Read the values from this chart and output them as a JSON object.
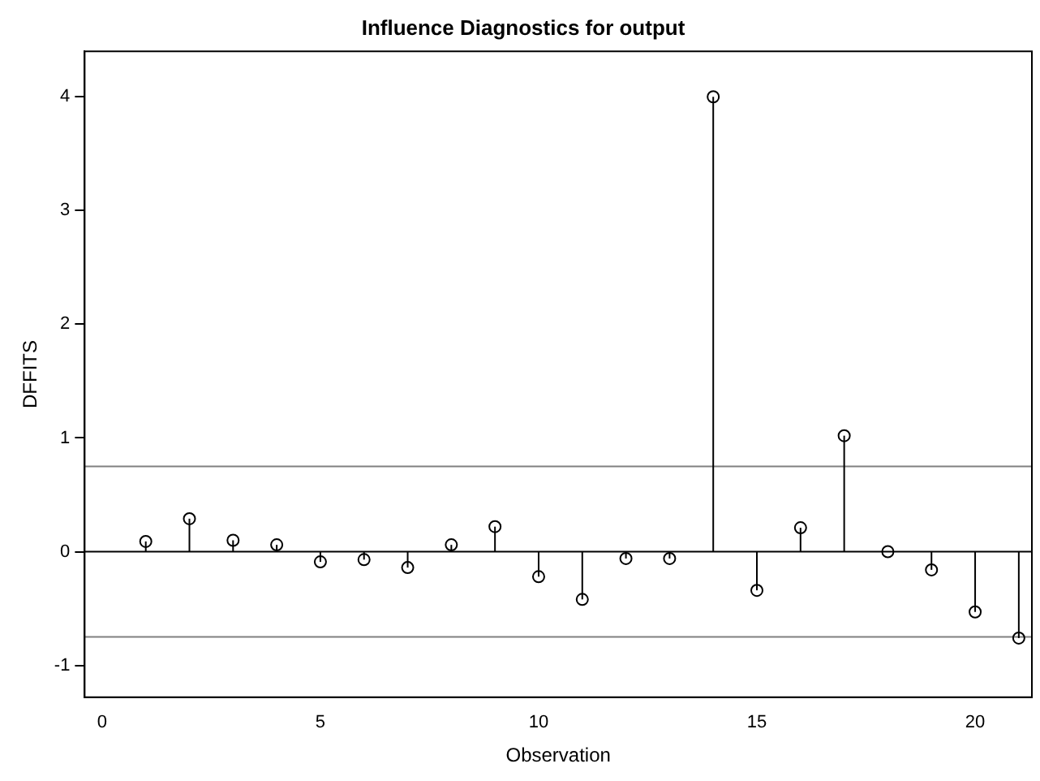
{
  "chart_data": {
    "type": "lollipop",
    "title": "Influence Diagnostics for output",
    "xlabel": "Observation",
    "ylabel": "DFFITS",
    "x": [
      1,
      2,
      3,
      4,
      5,
      6,
      7,
      8,
      9,
      10,
      11,
      12,
      13,
      14,
      15,
      16,
      17,
      18,
      19,
      20,
      21
    ],
    "values": [
      0.09,
      0.29,
      0.1,
      0.06,
      -0.09,
      -0.07,
      -0.14,
      0.06,
      0.22,
      -0.22,
      -0.42,
      -0.06,
      -0.06,
      4.0,
      -0.34,
      0.21,
      1.02,
      0.0,
      -0.16,
      -0.53,
      -0.76
    ],
    "color": "#000000",
    "marker": "circle",
    "grid": false,
    "legend": false,
    "xlim": [
      -0.4,
      21.3
    ],
    "xticks": [
      0,
      5,
      10,
      15,
      20
    ],
    "ylim": [
      -1.28,
      4.4
    ],
    "yticks": [
      -1,
      0,
      1,
      2,
      3,
      4
    ],
    "ref_lines": [
      {
        "axis": "y",
        "value": 0,
        "color": "#000000"
      },
      {
        "axis": "y",
        "value": 0.75,
        "color": "#808080"
      },
      {
        "axis": "y",
        "value": -0.75,
        "color": "#808080"
      }
    ]
  }
}
